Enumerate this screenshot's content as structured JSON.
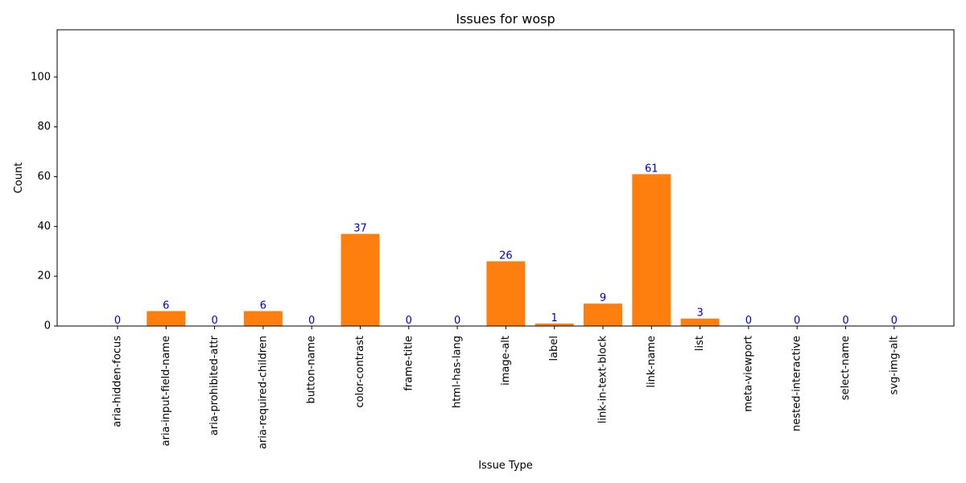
{
  "chart_data": {
    "type": "bar",
    "title": "Issues for wosp",
    "xlabel": "Issue Type",
    "ylabel": "Count",
    "categories": [
      "aria-hidden-focus",
      "aria-input-field-name",
      "aria-prohibited-attr",
      "aria-required-children",
      "button-name",
      "color-contrast",
      "frame-title",
      "html-has-lang",
      "image-alt",
      "label",
      "link-in-text-block",
      "link-name",
      "list",
      "meta-viewport",
      "nested-interactive",
      "select-name",
      "svg-img-alt"
    ],
    "values": [
      0,
      6,
      0,
      6,
      0,
      37,
      0,
      0,
      26,
      1,
      9,
      61,
      3,
      0,
      0,
      0,
      0
    ],
    "data_labels": [
      "0",
      "6",
      "0",
      "6",
      "0",
      "37",
      "0",
      "0",
      "26",
      "1",
      "9",
      "61",
      "3",
      "0",
      "0",
      "0",
      "0"
    ],
    "ylim": [
      0,
      119
    ],
    "yticks": [
      0,
      20,
      40,
      60,
      80,
      100
    ],
    "ytick_labels": [
      "0",
      "20",
      "40",
      "60",
      "80",
      "100"
    ],
    "grid": false,
    "bar_color": "#ff7f0e",
    "label_color": "#0000cc"
  }
}
